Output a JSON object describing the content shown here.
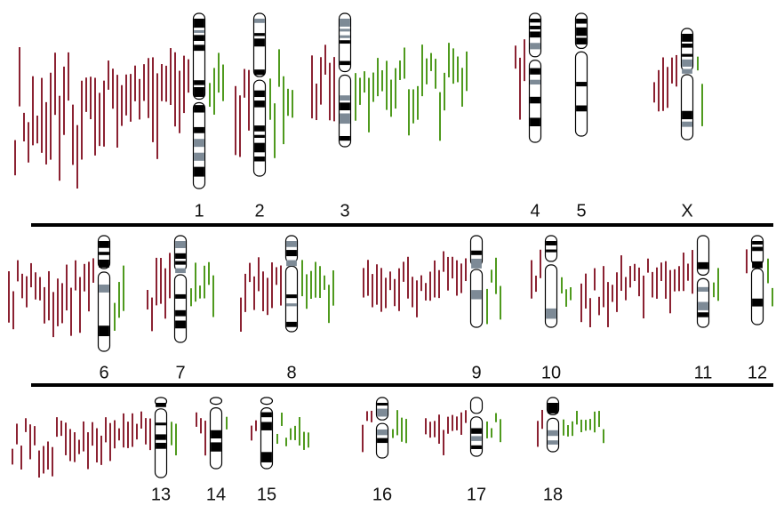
{
  "chromosomes": [
    {
      "label": "1"
    },
    {
      "label": "2"
    },
    {
      "label": "3"
    },
    {
      "label": "4"
    },
    {
      "label": "5"
    },
    {
      "label": "X"
    },
    {
      "label": "6"
    },
    {
      "label": "7"
    },
    {
      "label": "8"
    },
    {
      "label": "9"
    },
    {
      "label": "10"
    },
    {
      "label": "11"
    },
    {
      "label": "12"
    },
    {
      "label": "13"
    },
    {
      "label": "14"
    },
    {
      "label": "15"
    },
    {
      "label": "16"
    },
    {
      "label": "17"
    },
    {
      "label": "18"
    }
  ]
}
